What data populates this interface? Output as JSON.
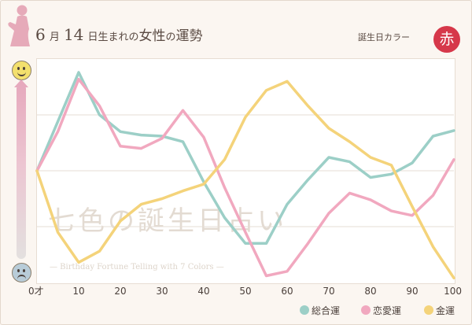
{
  "header": {
    "month_num": "6",
    "month_unit": "月",
    "day_num": "14",
    "day_suffix": "日生まれの",
    "subject": "女性",
    "possessive": "の",
    "topic": "運勢",
    "birth_color_label": "誕生日カラー",
    "birth_color_name": "赤",
    "birth_color_hex": "#d6384a"
  },
  "watermark": {
    "main": "七色の誕生日占い",
    "sub": "— Birthday Fortune Telling with 7 Colors —"
  },
  "icons": [
    "smiley-face-icon",
    "sad-face-icon",
    "silhouette-icon"
  ],
  "chart_data": {
    "type": "line",
    "x_tick_labels": [
      "0才",
      "10",
      "20",
      "30",
      "40",
      "50",
      "60",
      "70",
      "80",
      "90",
      "100"
    ],
    "xlim": [
      0,
      100
    ],
    "ylim": [
      -100,
      100
    ],
    "grid": true,
    "legend_position": "bottom-right",
    "series": [
      {
        "name": "総合運",
        "color": "#9ccfc7",
        "points": [
          [
            0,
            0
          ],
          [
            10,
            88
          ],
          [
            15,
            50
          ],
          [
            20,
            35
          ],
          [
            25,
            32
          ],
          [
            30,
            31
          ],
          [
            35,
            26
          ],
          [
            40,
            -10
          ],
          [
            45,
            -42
          ],
          [
            50,
            -65
          ],
          [
            55,
            -65
          ],
          [
            60,
            -30
          ],
          [
            65,
            -8
          ],
          [
            70,
            12
          ],
          [
            75,
            8
          ],
          [
            80,
            -6
          ],
          [
            85,
            -3
          ],
          [
            90,
            7
          ],
          [
            95,
            31
          ],
          [
            100,
            36
          ]
        ]
      },
      {
        "name": "恋愛運",
        "color": "#f1a8bf",
        "points": [
          [
            0,
            0
          ],
          [
            5,
            35
          ],
          [
            10,
            82
          ],
          [
            15,
            58
          ],
          [
            20,
            22
          ],
          [
            25,
            20
          ],
          [
            30,
            29
          ],
          [
            35,
            54
          ],
          [
            40,
            30
          ],
          [
            45,
            -15
          ],
          [
            50,
            -55
          ],
          [
            55,
            -94
          ],
          [
            60,
            -90
          ],
          [
            65,
            -65
          ],
          [
            70,
            -38
          ],
          [
            75,
            -20
          ],
          [
            80,
            -26
          ],
          [
            85,
            -36
          ],
          [
            90,
            -40
          ],
          [
            95,
            -22
          ],
          [
            100,
            10
          ]
        ]
      },
      {
        "name": "金運",
        "color": "#f4d37a",
        "points": [
          [
            0,
            0
          ],
          [
            5,
            -55
          ],
          [
            10,
            -82
          ],
          [
            15,
            -72
          ],
          [
            20,
            -45
          ],
          [
            25,
            -30
          ],
          [
            30,
            -25
          ],
          [
            35,
            -18
          ],
          [
            40,
            -12
          ],
          [
            45,
            10
          ],
          [
            50,
            48
          ],
          [
            55,
            72
          ],
          [
            60,
            80
          ],
          [
            65,
            58
          ],
          [
            70,
            38
          ],
          [
            75,
            26
          ],
          [
            80,
            12
          ],
          [
            85,
            5
          ],
          [
            90,
            -32
          ],
          [
            95,
            -68
          ],
          [
            100,
            -96
          ]
        ]
      }
    ]
  }
}
